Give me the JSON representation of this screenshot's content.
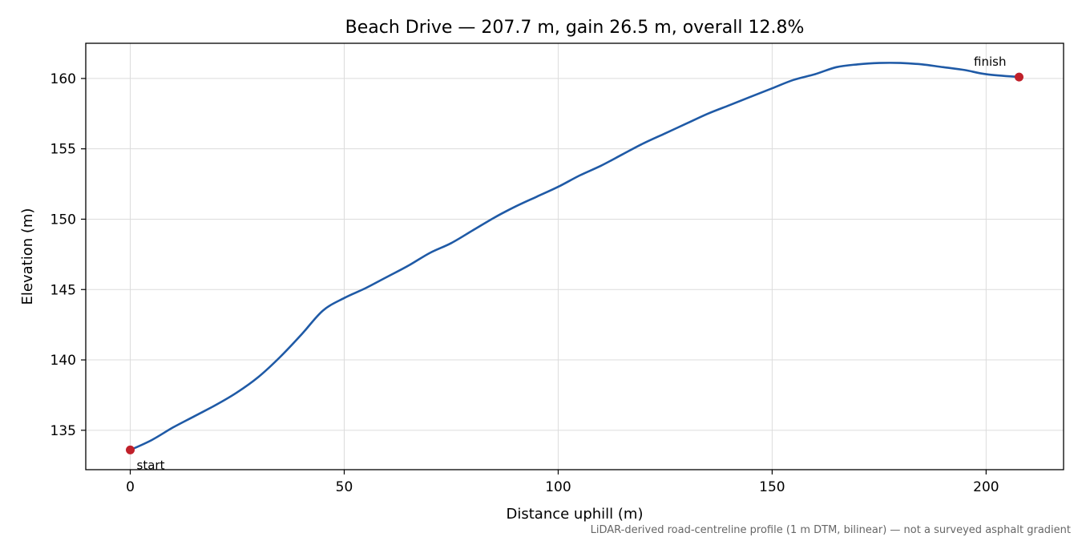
{
  "chart_data": {
    "type": "line",
    "title": "Beach Drive — 207.7 m, gain 26.5 m, overall 12.8%",
    "xlabel": "Distance uphill (m)",
    "ylabel": "Elevation (m)",
    "xlim": [
      -10.4,
      218.1
    ],
    "ylim": [
      132.2,
      162.5
    ],
    "xticks": [
      0,
      50,
      100,
      150,
      200
    ],
    "yticks": [
      135,
      140,
      145,
      150,
      155,
      160
    ],
    "grid": true,
    "footnote": "LiDAR-derived road-centreline profile (1 m DTM, bilinear) — not a surveyed asphalt gradient",
    "colors": {
      "line": "#1f5aa6",
      "marker": "#c0202a"
    },
    "series": [
      {
        "x": [
          0,
          5,
          10,
          15,
          20,
          25,
          30,
          35,
          40,
          45,
          50,
          55,
          60,
          65,
          70,
          75,
          80,
          85,
          90,
          95,
          100,
          105,
          110,
          115,
          120,
          125,
          130,
          135,
          140,
          145,
          150,
          155,
          160,
          165,
          170,
          175,
          180,
          185,
          190,
          195,
          200,
          207.7
        ],
        "y": [
          133.6,
          134.3,
          135.2,
          136.0,
          136.8,
          137.7,
          138.8,
          140.2,
          141.8,
          143.5,
          144.4,
          145.1,
          145.9,
          146.7,
          147.6,
          148.3,
          149.2,
          150.1,
          150.9,
          151.6,
          152.3,
          153.1,
          153.8,
          154.6,
          155.4,
          156.1,
          156.8,
          157.5,
          158.1,
          158.7,
          159.3,
          159.9,
          160.3,
          160.8,
          161.0,
          161.1,
          161.1,
          161.0,
          160.8,
          160.6,
          160.3,
          160.1
        ]
      }
    ],
    "annotations": [
      {
        "label": "start",
        "x": 0,
        "y": 133.6
      },
      {
        "label": "finish",
        "x": 207.7,
        "y": 160.1
      }
    ]
  }
}
